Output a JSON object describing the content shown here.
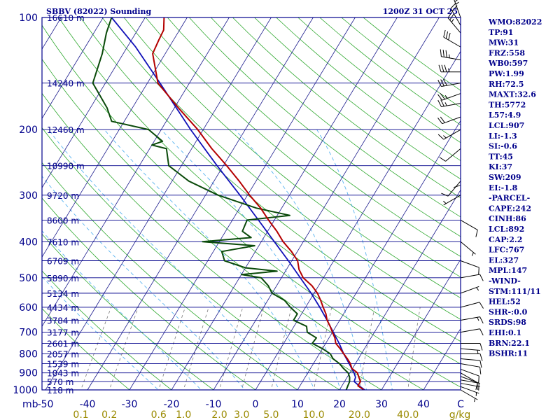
{
  "header": {
    "station": "SBBV (82022) Sounding",
    "time": "1200Z 31 OCT 25"
  },
  "indices": [
    "WMO:82022",
    "TP:91",
    "MW:31",
    "FRZ:558",
    "WB0:597",
    "PW:1.99",
    "RH:72.5",
    "MAXT:32.6",
    "TH:5772",
    "L57:4.9",
    "LCL:907",
    "LI:-1.3",
    "SI:-0.6",
    "TT:45",
    "KI:37",
    "SW:209",
    "EI:-1.8",
    "-PARCEL-",
    "CAPE:242",
    "CINH:86",
    "LCL:892",
    "CAP:2.2",
    "LFC:767",
    "EL:327",
    "MPL:147",
    "-WIND-",
    "STM:111/11",
    "HEL:52",
    "SHR-:0.0",
    "SRDS:98",
    "EHI:0.1",
    "BRN:22.1",
    "BSHR:11"
  ],
  "colors": {
    "frame": "#00008b",
    "isotherm": "#1a1a8c",
    "dry_adiabat": "#2fa82f",
    "moist_adiabat": "#5ab4f0",
    "mixing_ratio": "#7a7a7a",
    "temperature": "#b40000",
    "dewpoint": "#0a4a0a",
    "parcel": "#1010b8",
    "wind": "#000000",
    "mixing_label": "#9a8a00"
  },
  "chart_data": {
    "type": "skew-t",
    "title": "SBBV (82022) Sounding",
    "xlabel": "C",
    "mixing_ratio_unit": "g/kg",
    "ylabel": "mb",
    "pressure_range_mb": [
      1000,
      100
    ],
    "temp_range_c_at_bottom": [
      -50,
      50
    ],
    "pressure_ticks": [
      "100",
      "200",
      "300",
      "400",
      "500",
      "600",
      "700",
      "800",
      "900",
      "1000"
    ],
    "temp_ticks": [
      "-50",
      "-40",
      "-30",
      "-20",
      "-10",
      "0",
      "10",
      "20",
      "30",
      "40"
    ],
    "mixing_ratio_ticks": [
      "0.1",
      "0.2",
      "0.6",
      "1.0",
      "2.0",
      "3.0",
      "5.0",
      "10.0",
      "20.0",
      "40.0"
    ],
    "height_labels": [
      {
        "p": 100,
        "label": "16610 m"
      },
      {
        "p": 150,
        "label": "14240 m"
      },
      {
        "p": 200,
        "label": "12460 m"
      },
      {
        "p": 250,
        "label": "10990 m"
      },
      {
        "p": 300,
        "label": "9720 m"
      },
      {
        "p": 350,
        "label": "8600 m"
      },
      {
        "p": 400,
        "label": "7610 m"
      },
      {
        "p": 450,
        "label": "6709 m"
      },
      {
        "p": 500,
        "label": "5890 m"
      },
      {
        "p": 550,
        "label": "5134 m"
      },
      {
        "p": 600,
        "label": "4434 m"
      },
      {
        "p": 650,
        "label": "3784 m"
      },
      {
        "p": 700,
        "label": "3177 m"
      },
      {
        "p": 750,
        "label": "2601 m"
      },
      {
        "p": 800,
        "label": "2057 m"
      },
      {
        "p": 850,
        "label": "1539 m"
      },
      {
        "p": 900,
        "label": "1043 m"
      },
      {
        "p": 950,
        "label": "570 m"
      },
      {
        "p": 1000,
        "label": "118 m"
      }
    ],
    "temperature_profile": [
      [
        1000,
        25.8
      ],
      [
        975,
        23.8
      ],
      [
        950,
        23.8
      ],
      [
        925,
        22.8
      ],
      [
        900,
        21.8
      ],
      [
        875,
        19.8
      ],
      [
        850,
        18.8
      ],
      [
        825,
        17.4
      ],
      [
        800,
        15.8
      ],
      [
        775,
        14.2
      ],
      [
        750,
        12.4
      ],
      [
        725,
        11.4
      ],
      [
        700,
        10.0
      ],
      [
        675,
        8.6
      ],
      [
        650,
        7.0
      ],
      [
        625,
        5.8
      ],
      [
        600,
        4.2
      ],
      [
        575,
        2.6
      ],
      [
        550,
        0.8
      ],
      [
        525,
        -1.6
      ],
      [
        500,
        -4.8
      ],
      [
        475,
        -7.0
      ],
      [
        450,
        -8.6
      ],
      [
        425,
        -11.4
      ],
      [
        400,
        -14.8
      ],
      [
        375,
        -17.8
      ],
      [
        350,
        -21.4
      ],
      [
        325,
        -25.0
      ],
      [
        300,
        -29.5
      ],
      [
        275,
        -34.0
      ],
      [
        250,
        -39.2
      ],
      [
        225,
        -45.2
      ],
      [
        200,
        -51.3
      ],
      [
        175,
        -59.0
      ],
      [
        150,
        -67.5
      ],
      [
        125,
        -73.0
      ],
      [
        115,
        -73.5
      ],
      [
        108,
        -73.8
      ],
      [
        100,
        -75.5
      ]
    ],
    "dewpoint_profile": [
      [
        1000,
        21.6
      ],
      [
        975,
        21.4
      ],
      [
        950,
        21.2
      ],
      [
        925,
        20.6
      ],
      [
        900,
        19.6
      ],
      [
        875,
        17.8
      ],
      [
        850,
        16.2
      ],
      [
        825,
        14.0
      ],
      [
        800,
        12.6
      ],
      [
        775,
        10.0
      ],
      [
        750,
        6.8
      ],
      [
        725,
        7.0
      ],
      [
        700,
        4.0
      ],
      [
        675,
        3.0
      ],
      [
        650,
        -1.0
      ],
      [
        625,
        -1.0
      ],
      [
        600,
        -3.6
      ],
      [
        575,
        -6.0
      ],
      [
        550,
        -10.0
      ],
      [
        525,
        -12.0
      ],
      [
        500,
        -14.8
      ],
      [
        490,
        -20.0
      ],
      [
        480,
        -12.0
      ],
      [
        470,
        -20.0
      ],
      [
        450,
        -26.0
      ],
      [
        425,
        -28.0
      ],
      [
        410,
        -21.0
      ],
      [
        400,
        -34.0
      ],
      [
        390,
        -23.0
      ],
      [
        375,
        -26.0
      ],
      [
        350,
        -26.5
      ],
      [
        340,
        -17.0
      ],
      [
        325,
        -26.0
      ],
      [
        300,
        -37.0
      ],
      [
        275,
        -46.0
      ],
      [
        250,
        -53.0
      ],
      [
        225,
        -56.0
      ],
      [
        220,
        -60.0
      ],
      [
        215,
        -58.0
      ],
      [
        200,
        -63.0
      ],
      [
        190,
        -73.0
      ],
      [
        175,
        -76.0
      ],
      [
        150,
        -83.0
      ],
      [
        125,
        -85.0
      ],
      [
        110,
        -87.0
      ],
      [
        100,
        -88.0
      ]
    ],
    "parcel_profile": [
      [
        1000,
        26.0
      ],
      [
        975,
        24.1
      ],
      [
        950,
        22.3
      ],
      [
        925,
        22.0
      ],
      [
        900,
        21.0
      ],
      [
        850,
        18.5
      ],
      [
        800,
        15.8
      ],
      [
        750,
        13.2
      ],
      [
        700,
        10.2
      ],
      [
        650,
        7.0
      ],
      [
        600,
        3.4
      ],
      [
        550,
        -0.7
      ],
      [
        500,
        -5.5
      ],
      [
        450,
        -10.8
      ],
      [
        400,
        -16.9
      ],
      [
        350,
        -23.8
      ],
      [
        300,
        -31.8
      ],
      [
        250,
        -41.5
      ],
      [
        200,
        -53.0
      ],
      [
        150,
        -67.0
      ],
      [
        120,
        -78.0
      ],
      [
        100,
        -88.0
      ]
    ],
    "wind_barbs": [
      [
        1000,
        120,
        5
      ],
      [
        980,
        110,
        5
      ],
      [
        960,
        100,
        5
      ],
      [
        940,
        100,
        5
      ],
      [
        920,
        110,
        10
      ],
      [
        900,
        120,
        10
      ],
      [
        880,
        110,
        10
      ],
      [
        850,
        100,
        10
      ],
      [
        825,
        95,
        10
      ],
      [
        800,
        90,
        10
      ],
      [
        775,
        95,
        5
      ],
      [
        750,
        90,
        10
      ],
      [
        700,
        80,
        10
      ],
      [
        650,
        80,
        15
      ],
      [
        600,
        75,
        10
      ],
      [
        550,
        70,
        5
      ],
      [
        500,
        80,
        10
      ],
      [
        450,
        110,
        10
      ],
      [
        400,
        130,
        5
      ],
      [
        350,
        120,
        10
      ],
      [
        300,
        240,
        5
      ],
      [
        275,
        220,
        10
      ],
      [
        250,
        180,
        10
      ],
      [
        225,
        230,
        10
      ],
      [
        200,
        240,
        15
      ],
      [
        185,
        250,
        20
      ],
      [
        170,
        260,
        25
      ],
      [
        160,
        250,
        25
      ],
      [
        150,
        260,
        30
      ],
      [
        140,
        270,
        35
      ],
      [
        130,
        280,
        35
      ],
      [
        120,
        300,
        30
      ],
      [
        110,
        320,
        25
      ],
      [
        105,
        330,
        20
      ],
      [
        100,
        340,
        25
      ]
    ]
  }
}
